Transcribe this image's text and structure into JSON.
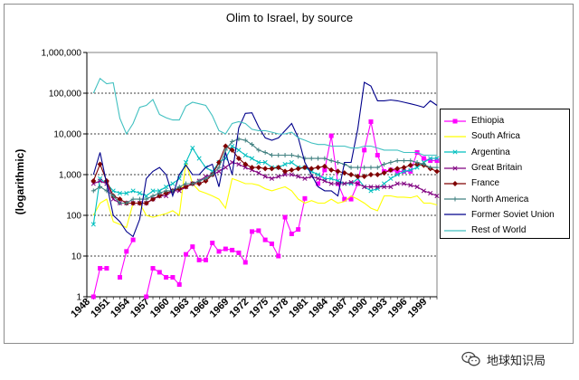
{
  "chart_data": {
    "type": "line",
    "title": "Olim to Israel, by source",
    "xlabel": "",
    "ylabel": "(logarithmic)",
    "yscale": "log",
    "ylim": [
      1,
      1000000
    ],
    "y_ticks": [
      "1",
      "10",
      "100",
      "1,000",
      "10,000",
      "100,000",
      "1,000,000"
    ],
    "x_ticks": [
      "1948",
      "1951",
      "1954",
      "1957",
      "1960",
      "1963",
      "1966",
      "1969",
      "1972",
      "1975",
      "1978",
      "1981",
      "1984",
      "1987",
      "1990",
      "1993",
      "1996",
      "1999"
    ],
    "grid": "horizontal-dotted",
    "legend_position": "right",
    "x": [
      1948,
      1949,
      1950,
      1951,
      1952,
      1953,
      1954,
      1955,
      1956,
      1957,
      1958,
      1959,
      1960,
      1961,
      1962,
      1963,
      1964,
      1965,
      1966,
      1967,
      1968,
      1969,
      1970,
      1971,
      1972,
      1973,
      1974,
      1975,
      1976,
      1977,
      1978,
      1979,
      1980,
      1981,
      1982,
      1983,
      1984,
      1985,
      1986,
      1987,
      1988,
      1989,
      1990,
      1991,
      1992,
      1993,
      1994,
      1995,
      1996,
      1997,
      1998,
      1999,
      2000,
      2001
    ],
    "series": [
      {
        "name": "Ethiopia",
        "color": "#ff00ff",
        "marker": "square",
        "values": [
          null,
          1,
          5,
          5,
          null,
          3,
          13,
          25,
          null,
          1,
          5,
          4,
          3,
          3,
          2,
          11,
          17,
          8,
          8,
          21,
          13,
          15,
          14,
          12,
          7,
          40,
          42,
          25,
          20,
          10,
          90,
          35,
          45,
          260,
          null,
          600,
          1300,
          9000,
          600,
          250,
          250,
          600,
          4000,
          20000,
          3000,
          1200,
          1300,
          1200,
          1200,
          1200,
          3500,
          2500,
          2200,
          2200
        ]
      },
      {
        "name": "South Africa",
        "color": "#ffff00",
        "marker": "none",
        "values": [
          null,
          100,
          200,
          250,
          70,
          60,
          50,
          200,
          200,
          100,
          90,
          100,
          110,
          130,
          100,
          2000,
          600,
          400,
          350,
          300,
          250,
          150,
          800,
          700,
          600,
          600,
          550,
          450,
          400,
          450,
          500,
          400,
          250,
          200,
          230,
          200,
          200,
          250,
          200,
          220,
          300,
          250,
          200,
          150,
          130,
          300,
          300,
          280,
          280,
          270,
          300,
          200,
          200,
          180
        ]
      },
      {
        "name": "Argentina",
        "color": "#00bfbf",
        "marker": "x",
        "values": [
          null,
          60,
          800,
          600,
          400,
          350,
          350,
          400,
          350,
          300,
          400,
          400,
          500,
          600,
          800,
          2000,
          4500,
          2500,
          1500,
          1200,
          2000,
          2500,
          5000,
          4000,
          3000,
          2500,
          2000,
          2000,
          1500,
          1500,
          1800,
          2000,
          1500,
          1500,
          1200,
          1000,
          800,
          800,
          700,
          600,
          600,
          800,
          500,
          400,
          450,
          600,
          800,
          1000,
          1200,
          1300,
          1500,
          2000,
          2500,
          2500
        ]
      },
      {
        "name": "Great Britain",
        "color": "#800080",
        "marker": "x",
        "values": [
          null,
          600,
          700,
          600,
          250,
          200,
          200,
          200,
          200,
          200,
          250,
          300,
          300,
          400,
          400,
          500,
          600,
          700,
          900,
          1000,
          1200,
          1500,
          2000,
          1800,
          1500,
          1300,
          1100,
          900,
          800,
          900,
          1000,
          1000,
          900,
          800,
          900,
          800,
          700,
          600,
          600,
          600,
          650,
          600,
          500,
          500,
          500,
          500,
          500,
          600,
          600,
          550,
          500,
          400,
          350,
          300
        ]
      },
      {
        "name": "France",
        "color": "#800000",
        "marker": "diamond",
        "values": [
          null,
          700,
          1800,
          700,
          300,
          250,
          200,
          200,
          200,
          200,
          250,
          300,
          350,
          400,
          450,
          500,
          600,
          600,
          700,
          1000,
          2000,
          5000,
          4000,
          2500,
          1800,
          1500,
          1500,
          1400,
          1400,
          1500,
          1200,
          1300,
          1400,
          1500,
          1400,
          1500,
          1600,
          1300,
          1200,
          1100,
          1000,
          900,
          900,
          1000,
          1000,
          1100,
          1300,
          1400,
          1500,
          1700,
          1800,
          1700,
          1400,
          1200
        ]
      },
      {
        "name": "North America",
        "color": "#408080",
        "marker": "plus",
        "values": [
          null,
          400,
          500,
          400,
          300,
          200,
          200,
          250,
          250,
          250,
          300,
          350,
          400,
          400,
          500,
          600,
          600,
          700,
          800,
          1000,
          1500,
          4000,
          6500,
          7500,
          7000,
          5500,
          4000,
          3500,
          3000,
          3000,
          3000,
          3000,
          2800,
          2500,
          2500,
          2500,
          2500,
          2200,
          2000,
          1800,
          1500,
          1500,
          1500,
          1500,
          1500,
          1800,
          2000,
          2200,
          2200,
          2200,
          2000,
          1800,
          1500,
          1500
        ]
      },
      {
        "name": "Former Soviet Union",
        "color": "#00008b",
        "marker": "none",
        "values": [
          null,
          1000,
          3500,
          600,
          100,
          70,
          40,
          30,
          80,
          800,
          1200,
          1500,
          1000,
          300,
          1000,
          1700,
          1000,
          1000,
          1500,
          1800,
          500,
          3500,
          1000,
          14000,
          32000,
          33000,
          15000,
          8000,
          7000,
          8000,
          12000,
          18000,
          8000,
          2000,
          1000,
          500,
          400,
          400,
          300,
          2000,
          2000,
          13000,
          185000,
          150000,
          65000,
          65000,
          68000,
          65000,
          60000,
          55000,
          50000,
          45000,
          65000,
          50000
        ]
      },
      {
        "name": "Rest of World",
        "color": "#40c0c0",
        "marker": "none",
        "values": [
          null,
          100000,
          230000,
          170000,
          180000,
          24000,
          10000,
          18000,
          45000,
          50000,
          70000,
          30000,
          25000,
          22000,
          22000,
          48000,
          60000,
          55000,
          50000,
          28000,
          12000,
          10000,
          18000,
          20000,
          18000,
          13000,
          12000,
          12000,
          11000,
          10000,
          10000,
          11000,
          8000,
          7000,
          6000,
          5500,
          5500,
          5000,
          5000,
          5000,
          4500,
          4500,
          5000,
          5000,
          4500,
          4000,
          4000,
          4000,
          3500,
          3500,
          3500,
          3000,
          3000,
          3000
        ]
      }
    ]
  },
  "watermark": {
    "text": "地球知识局",
    "icon": "wechat-logo-icon"
  }
}
